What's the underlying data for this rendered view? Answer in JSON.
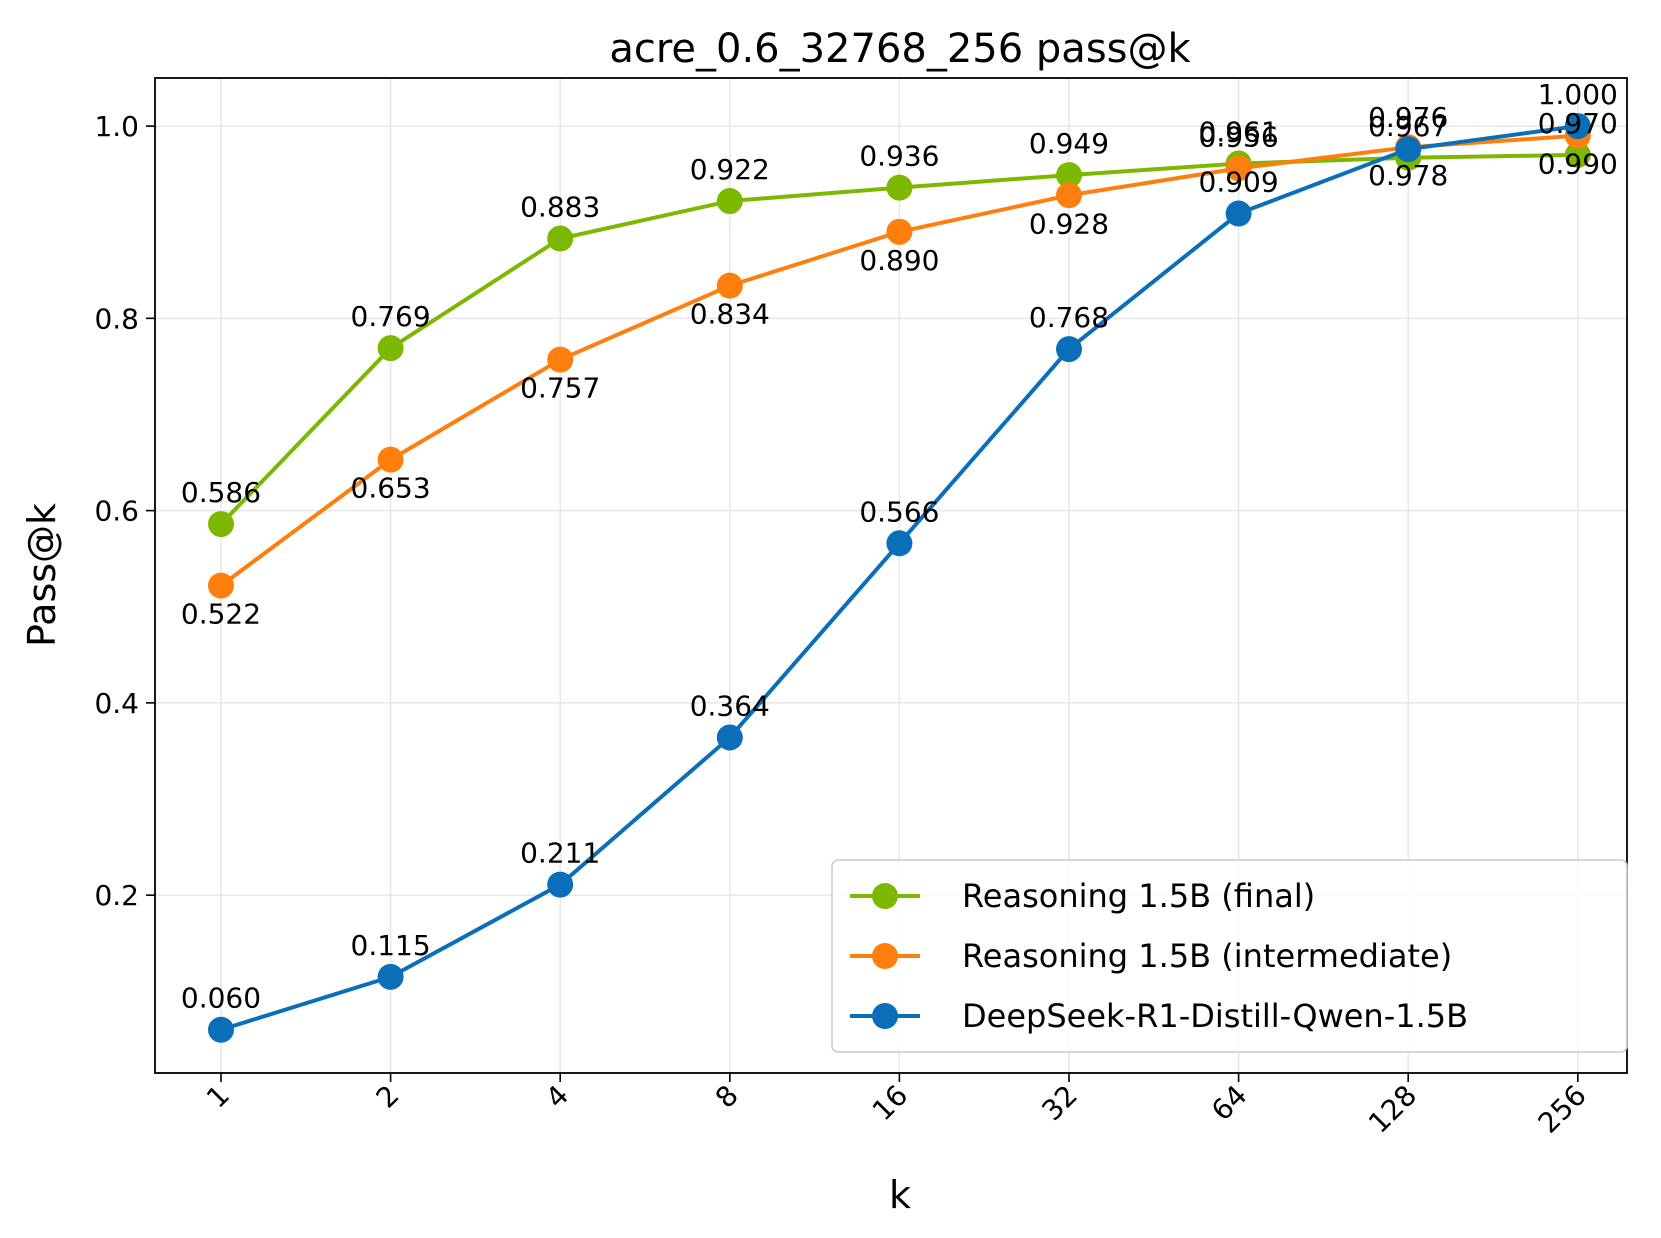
{
  "chart_data": {
    "type": "line",
    "title": "acre_0.6_32768_256 pass@k",
    "xlabel": "k",
    "ylabel": "Pass@k",
    "categories": [
      "1",
      "2",
      "4",
      "8",
      "16",
      "32",
      "64",
      "128",
      "256"
    ],
    "ylim": [
      0.015,
      1.05
    ],
    "yticks": [
      0.2,
      0.4,
      0.6,
      0.8,
      1.0
    ],
    "ytick_labels": [
      "0.2",
      "0.4",
      "0.6",
      "0.8",
      "1.0"
    ],
    "grid": true,
    "legend_position": "lower-right",
    "series": [
      {
        "name": "Reasoning 1.5B (final)",
        "color": "#7cb800",
        "values": [
          0.586,
          0.769,
          0.883,
          0.922,
          0.936,
          0.949,
          0.961,
          0.967,
          0.97
        ],
        "labels": [
          "0.586",
          "0.769",
          "0.883",
          "0.922",
          "0.936",
          "0.949",
          "0.961",
          "0.967",
          "0.970"
        ],
        "label_side": [
          "above",
          "above",
          "above",
          "above",
          "above",
          "above",
          "above",
          "above",
          "above"
        ]
      },
      {
        "name": "Reasoning 1.5B (intermediate)",
        "color": "#ff7f0e",
        "values": [
          0.522,
          0.653,
          0.757,
          0.834,
          0.89,
          0.928,
          0.956,
          0.978,
          0.99
        ],
        "labels": [
          "0.522",
          "0.653",
          "0.757",
          "0.834",
          "0.890",
          "0.928",
          "0.956",
          "0.978",
          "0.990"
        ],
        "label_side": [
          "below",
          "below",
          "below",
          "below",
          "below",
          "below",
          "above",
          "below",
          "below"
        ]
      },
      {
        "name": "DeepSeek-R1-Distill-Qwen-1.5B",
        "color": "#0a6fb8",
        "values": [
          0.06,
          0.115,
          0.211,
          0.364,
          0.566,
          0.768,
          0.909,
          0.976,
          1.0
        ],
        "labels": [
          "0.060",
          "0.115",
          "0.211",
          "0.364",
          "0.566",
          "0.768",
          "0.909",
          "0.976",
          "1.000"
        ],
        "label_side": [
          "above",
          "above",
          "above",
          "above",
          "above",
          "above",
          "above",
          "above",
          "above"
        ]
      }
    ]
  }
}
